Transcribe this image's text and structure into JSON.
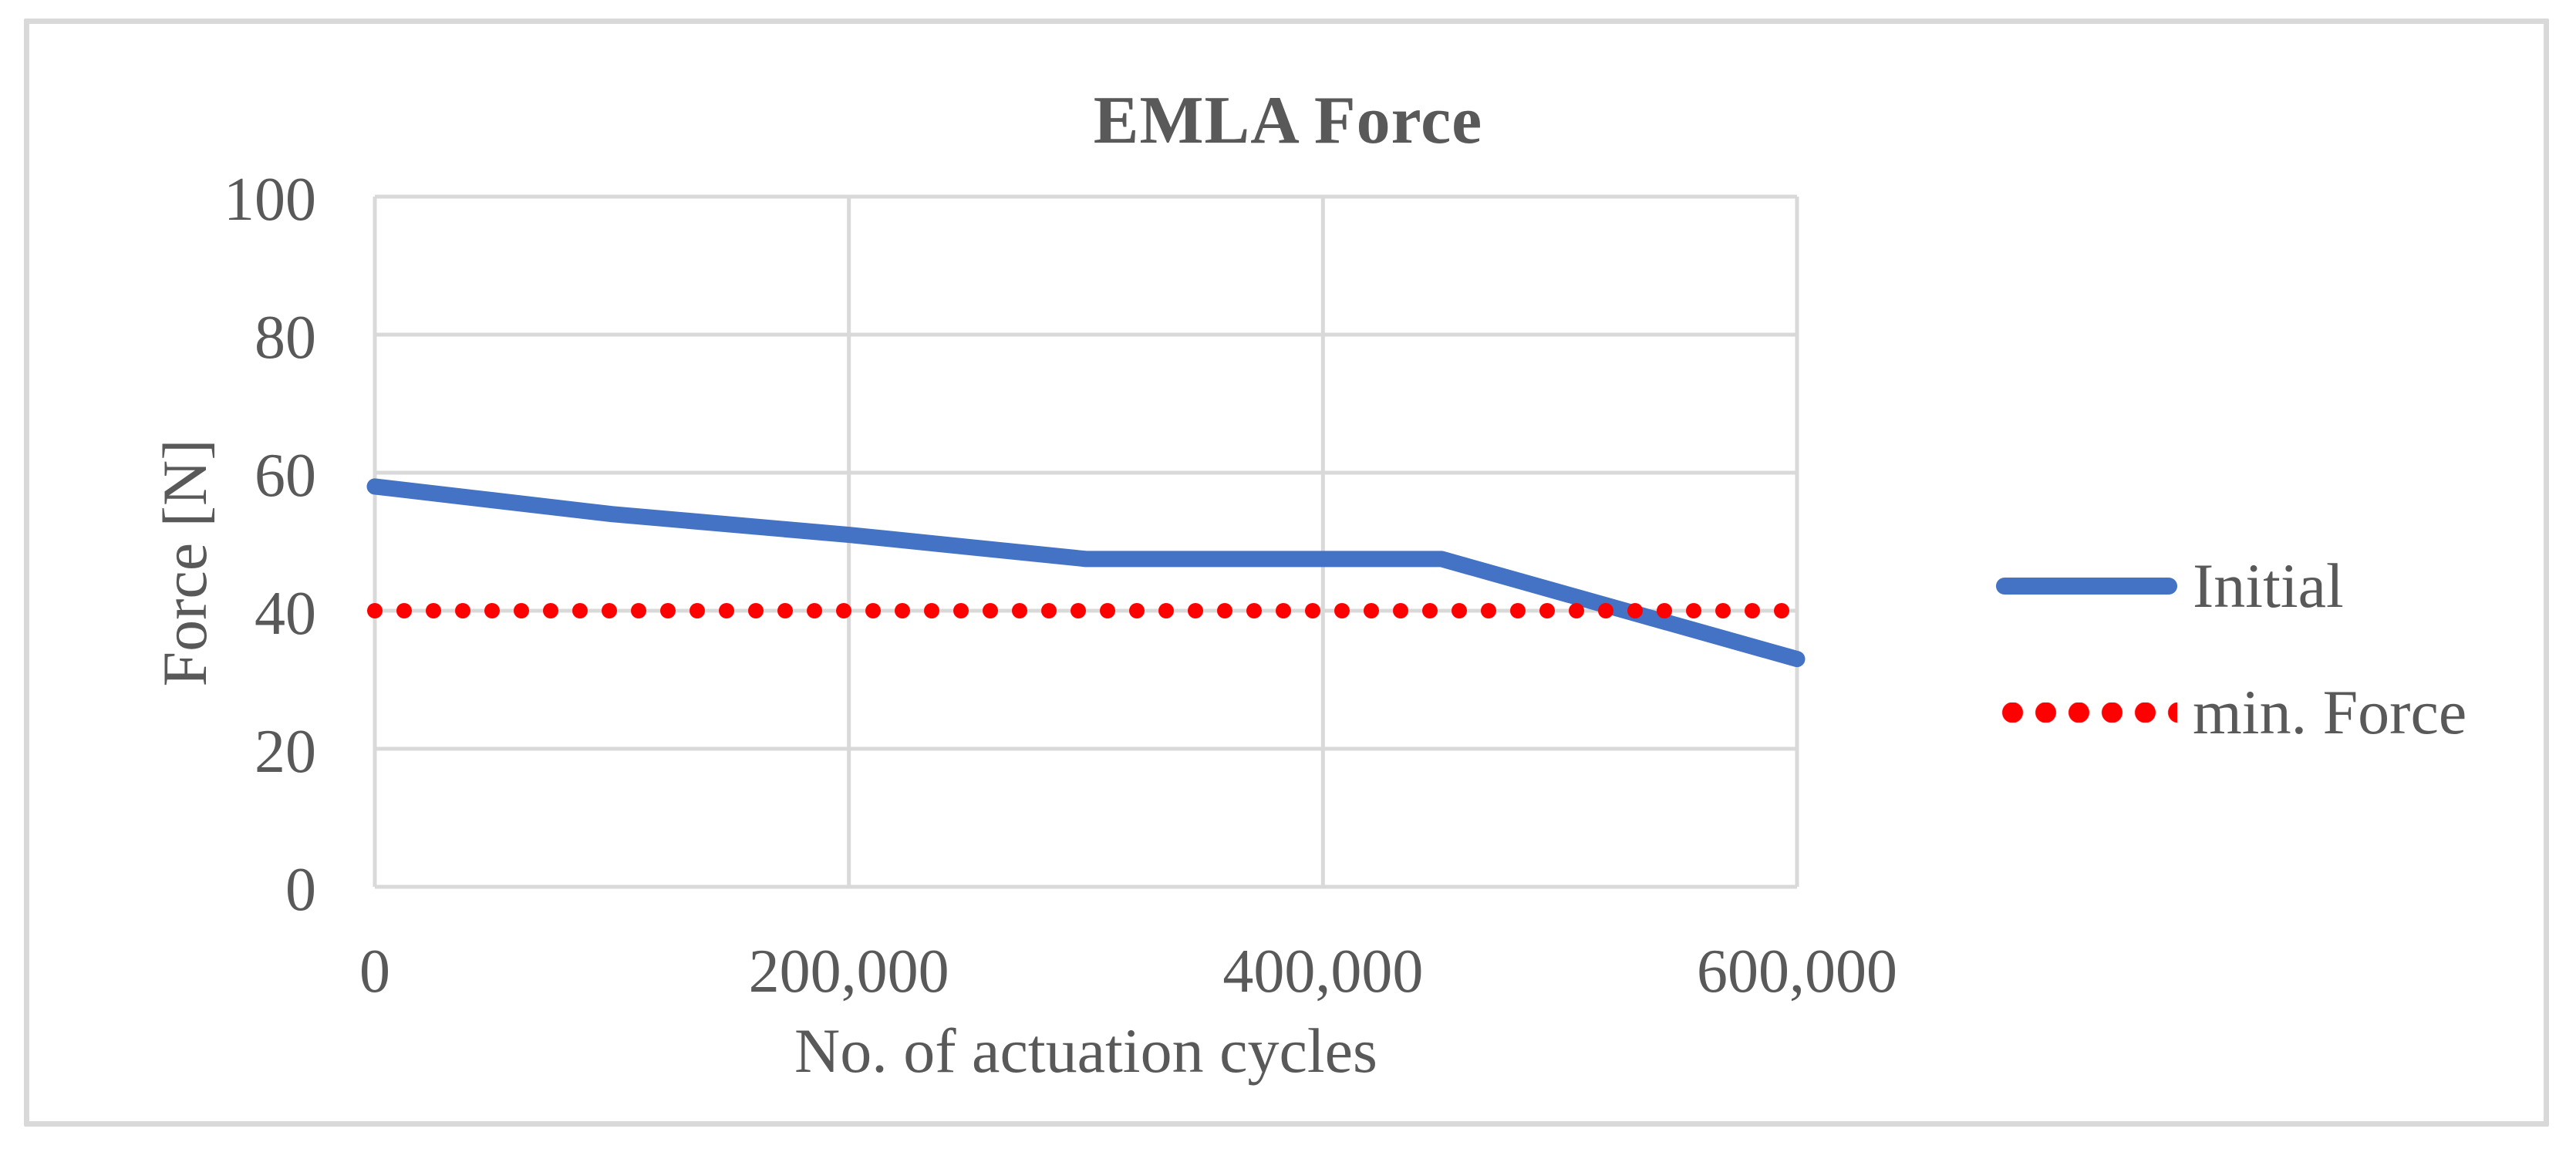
{
  "chart_data": {
    "type": "line",
    "title": "EMLA Force",
    "xlabel": "No. of actuation cycles",
    "ylabel": "Force [N]",
    "xlim": [
      0,
      600000
    ],
    "ylim": [
      0,
      100
    ],
    "xticks": [
      0,
      200000,
      400000,
      600000
    ],
    "xtick_labels": [
      "0",
      "200,000",
      "400,000",
      "600,000"
    ],
    "yticks": [
      0,
      20,
      40,
      60,
      80,
      100
    ],
    "ytick_labels": [
      "0",
      "20",
      "40",
      "60",
      "80",
      "100"
    ],
    "grid": true,
    "legend_position": "right",
    "series": [
      {
        "name": "Initial",
        "color": "#4472C4",
        "style": "solid",
        "x": [
          0,
          100000,
          200000,
          300000,
          450000,
          600000
        ],
        "y": [
          58,
          54,
          51,
          47.5,
          47.5,
          33
        ]
      },
      {
        "name": "min. Force",
        "color": "#FF0000",
        "style": "dotted",
        "x": [
          0,
          600000
        ],
        "y": [
          40,
          40
        ]
      }
    ],
    "colors": {
      "text": "#595959",
      "gridline": "#D9D9D9",
      "frame": "#D9D9D9"
    }
  }
}
